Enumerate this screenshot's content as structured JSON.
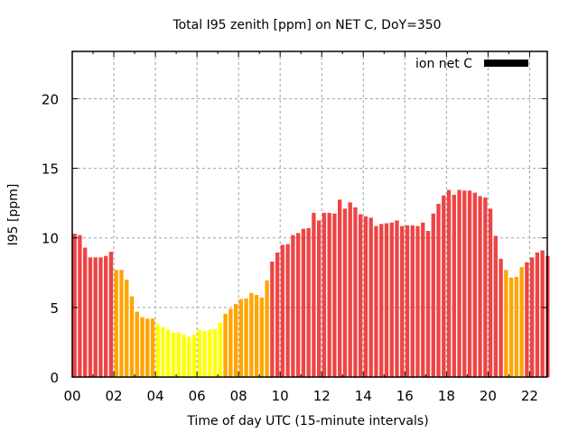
{
  "chart_data": {
    "type": "bar",
    "title": "Total I95 zenith [ppm] on NET C, DoY=350",
    "xlabel": "Time of day UTC (15-minute intervals)",
    "ylabel": "I95 [ppm]",
    "ylim": [
      0,
      23.4
    ],
    "xlim_hours": [
      0,
      22.85
    ],
    "grid": true,
    "legend": {
      "position": "top-right",
      "entries": [
        {
          "label": "ion net C",
          "color": "#000000"
        }
      ]
    },
    "x_ticks": [
      "00",
      "02",
      "04",
      "06",
      "08",
      "10",
      "12",
      "14",
      "16",
      "18",
      "20",
      "22"
    ],
    "x_tick_hours": [
      0,
      2,
      4,
      6,
      8,
      10,
      12,
      14,
      16,
      18,
      20,
      22
    ],
    "y_ticks": [
      0,
      5,
      10,
      15,
      20
    ],
    "interval_minutes": 15,
    "color_levels": {
      "red": "#ee4444",
      "orange": "#ffa500",
      "yellow": "#ffff00"
    },
    "values": [
      10.3,
      10.2,
      9.3,
      8.6,
      8.6,
      8.6,
      8.7,
      9.0,
      7.7,
      7.7,
      7.0,
      5.8,
      4.7,
      4.3,
      4.2,
      4.2,
      3.8,
      3.6,
      3.4,
      3.2,
      3.2,
      3.05,
      2.9,
      3.05,
      3.4,
      3.3,
      3.4,
      3.45,
      3.9,
      4.55,
      4.9,
      5.25,
      5.6,
      5.65,
      6.05,
      5.9,
      5.7,
      6.95,
      8.3,
      8.95,
      9.5,
      9.55,
      10.2,
      10.35,
      10.65,
      10.7,
      11.8,
      11.25,
      11.8,
      11.8,
      11.75,
      12.75,
      12.1,
      12.55,
      12.2,
      11.7,
      11.55,
      11.45,
      10.85,
      11.0,
      11.05,
      11.1,
      11.25,
      10.85,
      10.9,
      10.9,
      10.85,
      11.1,
      10.5,
      11.75,
      12.45,
      13.05,
      13.45,
      13.1,
      13.45,
      13.4,
      13.4,
      13.25,
      13.0,
      12.9,
      12.1,
      10.15,
      8.5,
      7.7,
      7.15,
      7.2,
      7.9,
      8.25,
      8.6,
      8.95,
      9.1,
      8.7
    ],
    "colors": [
      "red",
      "red",
      "red",
      "red",
      "red",
      "red",
      "red",
      "red",
      "orange",
      "orange",
      "orange",
      "orange",
      "orange",
      "orange",
      "orange",
      "orange",
      "yellow",
      "yellow",
      "yellow",
      "yellow",
      "yellow",
      "yellow",
      "yellow",
      "yellow",
      "yellow",
      "yellow",
      "yellow",
      "yellow",
      "yellow",
      "orange",
      "orange",
      "orange",
      "orange",
      "orange",
      "orange",
      "orange",
      "orange",
      "orange",
      "red",
      "red",
      "red",
      "red",
      "red",
      "red",
      "red",
      "red",
      "red",
      "red",
      "red",
      "red",
      "red",
      "red",
      "red",
      "red",
      "red",
      "red",
      "red",
      "red",
      "red",
      "red",
      "red",
      "red",
      "red",
      "red",
      "red",
      "red",
      "red",
      "red",
      "red",
      "red",
      "red",
      "red",
      "red",
      "red",
      "red",
      "red",
      "red",
      "red",
      "red",
      "red",
      "red",
      "red",
      "red",
      "orange",
      "orange",
      "orange",
      "orange",
      "red",
      "red",
      "red",
      "red",
      "red"
    ]
  }
}
